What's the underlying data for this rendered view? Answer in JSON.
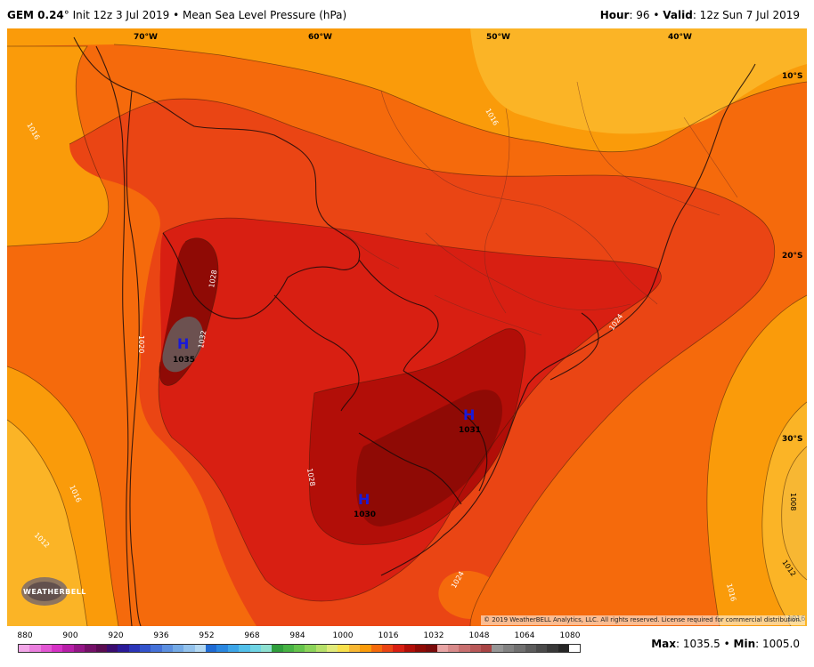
{
  "header": {
    "model": "GEM 0.24",
    "degree_sign": "°",
    "init": " Init 12z 3 Jul 2019 • Mean Sea Level Pressure (hPa)",
    "hour_label": "Hour",
    "hour_value": ": 96 • ",
    "valid_label": "Valid",
    "valid_value": ": 12z Sun 7 Jul 2019"
  },
  "map": {
    "lon_labels": [
      "70°W",
      "60°W",
      "50°W",
      "40°W"
    ],
    "lat_labels": [
      "10°S",
      "20°S",
      "30°S"
    ],
    "highs": [
      {
        "symbol": "H",
        "value": "1035"
      },
      {
        "symbol": "H",
        "value": "1031"
      },
      {
        "symbol": "H",
        "value": "1030"
      }
    ],
    "isobar_labels": [
      "1016",
      "1016",
      "1028",
      "1032",
      "1020",
      "1024",
      "1028",
      "1016",
      "1012",
      "1024",
      "1008",
      "1012",
      "1016",
      "1016"
    ],
    "corner_label": "1016",
    "colors": {
      "p1008": "#f7b733",
      "p1012": "#fbb426",
      "p1016": "#fa9b0a",
      "p1020": "#f56a0c",
      "p1024": "#ea4514",
      "p1028": "#d81f12",
      "p1030": "#b20e08",
      "p1032": "#8f0a05",
      "p1035": "#6c5150"
    }
  },
  "colorbar": {
    "labels": [
      "880",
      "900",
      "920",
      "936",
      "952",
      "968",
      "984",
      "1000",
      "1016",
      "1032",
      "1048",
      "1064",
      "1080"
    ],
    "swatches": [
      "#f2a6e8",
      "#ea7fde",
      "#e256d3",
      "#d531c5",
      "#b71ea8",
      "#941587",
      "#741068",
      "#5a0c52",
      "#3a0c70",
      "#2a1a98",
      "#2b35b8",
      "#3253cc",
      "#4471d8",
      "#5b8fe0",
      "#74aae6",
      "#93c2ec",
      "#b3d8f2",
      "#1f6bd4",
      "#2a87e0",
      "#3ca5e8",
      "#52c0ea",
      "#6fd4e4",
      "#8de0d0",
      "#2f9e3c",
      "#47b344",
      "#65c44c",
      "#8cd45a",
      "#b6e06a",
      "#e0ea7a",
      "#f7e04c",
      "#f7b733",
      "#fa9b0a",
      "#f56a0c",
      "#ea4514",
      "#d81f12",
      "#b20e08",
      "#8f0a05",
      "#7a0a0a",
      "#e8a4a4",
      "#d88a8a",
      "#c86f6f",
      "#b85858",
      "#a84444",
      "#969696",
      "#828282",
      "#707070",
      "#5c5c5c",
      "#4a4a4a",
      "#383838",
      "#262626",
      "#ffffff"
    ],
    "maxmin_max_label": "Max",
    "maxmin_max_value": ": 1035.5 • ",
    "maxmin_min_label": "Min",
    "maxmin_min_value": ": 1005.0"
  },
  "copyright": "© 2019 WeatherBELL Analytics, LLC. All rights reserved. License required for commercial distribution.",
  "logo_text": "WEATHERBELL"
}
